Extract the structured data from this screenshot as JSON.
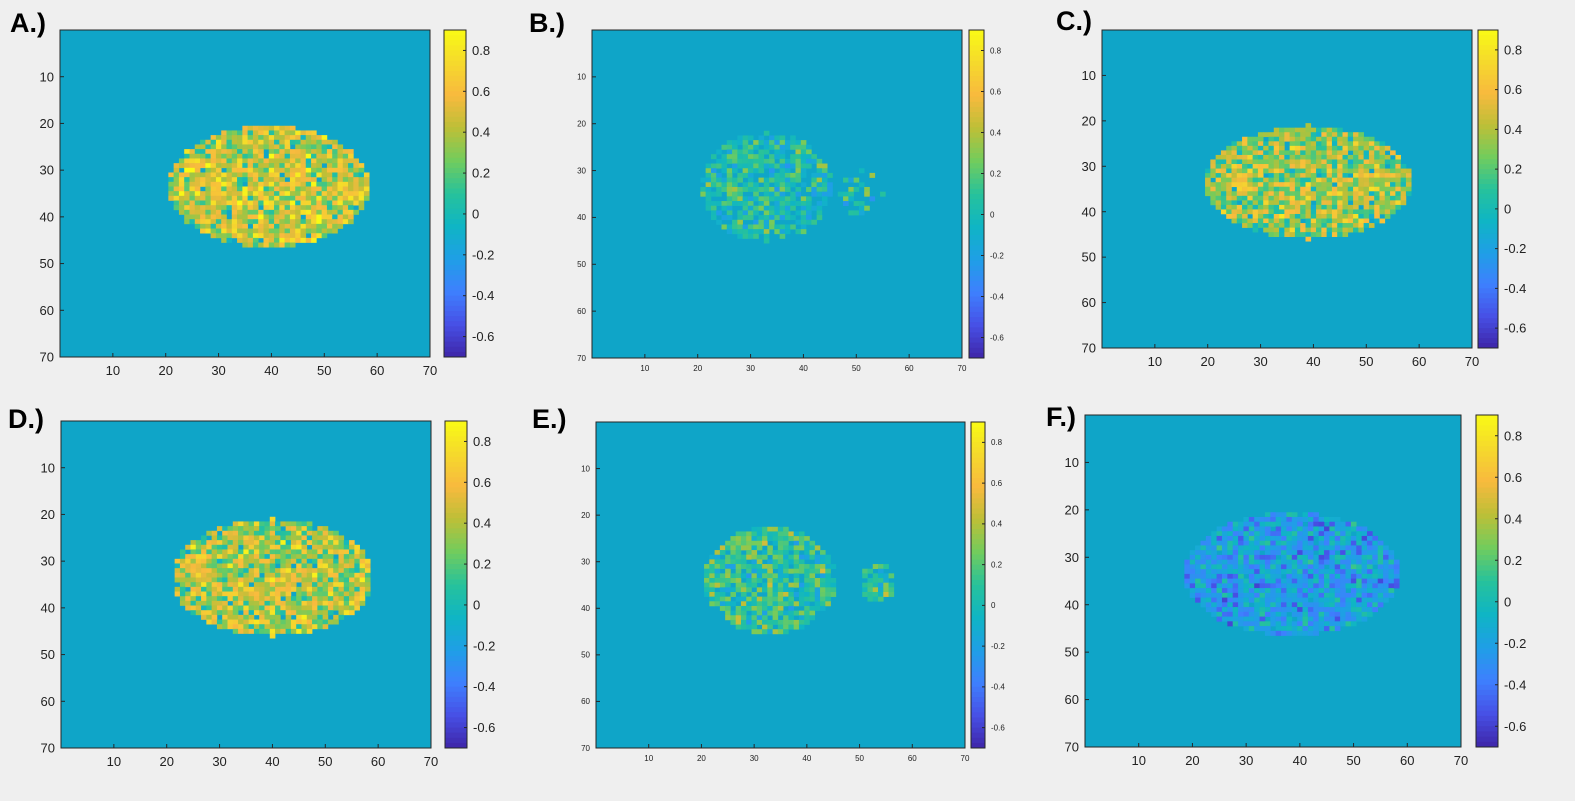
{
  "colors": {
    "background_value": "#0fa5c8",
    "colormap": [
      "#3e26a8",
      "#4750e6",
      "#3e80fe",
      "#1f9fe6",
      "#0fb5c4",
      "#27c29b",
      "#72cc5d",
      "#bdbf37",
      "#f8ba3e",
      "#f5d92c",
      "#f9fb15"
    ]
  },
  "chart_data": [
    {
      "type": "heatmap",
      "label": "A.)",
      "xticks": [
        10,
        20,
        30,
        40,
        50,
        60,
        70
      ],
      "yticks": [
        10,
        20,
        30,
        40,
        50,
        60,
        70
      ],
      "xlim": [
        0,
        70
      ],
      "ylim": [
        0,
        70
      ],
      "clim": [
        -0.7,
        0.9
      ],
      "colorbar_ticks": [
        0.8,
        0.6,
        0.4,
        0.2,
        0,
        -0.2,
        -0.4,
        -0.6
      ],
      "colorbar_tick_labels": [
        "0.8",
        "0.6",
        "0.4",
        "0.2",
        "0",
        "-0.2",
        "-0.4",
        "-0.6"
      ],
      "region": {
        "cx": 39.5,
        "cy": 33.5,
        "rx": 19,
        "ry": 13
      },
      "lobe": null,
      "value_mean": 0.45,
      "value_spread": 0.32,
      "seed": 11,
      "hotspots": [
        {
          "x": 27,
          "y": 33,
          "r": 4,
          "v": 0.75
        },
        {
          "x": 43,
          "y": 32,
          "r": 4,
          "v": 0.75
        },
        {
          "x": 55,
          "y": 35,
          "r": 4,
          "v": 0.7
        }
      ]
    },
    {
      "type": "heatmap",
      "label": "B.)",
      "xticks": [
        10,
        20,
        30,
        40,
        50,
        60,
        70
      ],
      "yticks": [
        10,
        20,
        30,
        40,
        50,
        60,
        70
      ],
      "xlim": [
        0,
        70
      ],
      "ylim": [
        0,
        70
      ],
      "clim": [
        -0.7,
        0.9
      ],
      "colorbar_ticks": [
        0.8,
        0.6,
        0.4,
        0.2,
        0,
        -0.2,
        -0.4,
        -0.6
      ],
      "colorbar_tick_labels": [
        "0.8",
        "0.6",
        "0.4",
        "0.2",
        "0",
        "-0.2",
        "-0.4",
        "-0.6"
      ],
      "region": {
        "cx": 33,
        "cy": 33.5,
        "rx": 12.5,
        "ry": 11.5
      },
      "lobe": {
        "cx": 51,
        "cy": 35,
        "rx": 4,
        "ry": 5,
        "density": 0.45
      },
      "value_mean": 0.05,
      "value_spread": 0.22,
      "density": 0.78,
      "seed": 23,
      "hotspots": [
        {
          "x": 27,
          "y": 34,
          "r": 3,
          "v": 0.55
        }
      ]
    },
    {
      "type": "heatmap",
      "label": "C.)",
      "xticks": [
        10,
        20,
        30,
        40,
        50,
        60,
        70
      ],
      "yticks": [
        10,
        20,
        30,
        40,
        50,
        60,
        70
      ],
      "xlim": [
        0,
        70
      ],
      "ylim": [
        0,
        70
      ],
      "clim": [
        -0.7,
        0.9
      ],
      "colorbar_ticks": [
        0.8,
        0.6,
        0.4,
        0.2,
        0,
        -0.2,
        -0.4,
        -0.6
      ],
      "colorbar_tick_labels": [
        "0.8",
        "0.6",
        "0.4",
        "0.2",
        "0",
        "-0.2",
        "-0.4",
        "-0.6"
      ],
      "region": {
        "cx": 39,
        "cy": 33.5,
        "rx": 19.5,
        "ry": 12.5
      },
      "lobe": null,
      "value_mean": 0.35,
      "value_spread": 0.3,
      "seed": 37,
      "hotspots": [
        {
          "x": 26,
          "y": 34,
          "r": 4,
          "v": 0.85
        },
        {
          "x": 51,
          "y": 32,
          "r": 3.5,
          "v": 0.9
        }
      ]
    },
    {
      "type": "heatmap",
      "label": "D.)",
      "xticks": [
        10,
        20,
        30,
        40,
        50,
        60,
        70
      ],
      "yticks": [
        10,
        20,
        30,
        40,
        50,
        60,
        70
      ],
      "xlim": [
        0,
        70
      ],
      "ylim": [
        0,
        70
      ],
      "clim": [
        -0.7,
        0.9
      ],
      "colorbar_ticks": [
        0.8,
        0.6,
        0.4,
        0.2,
        0,
        -0.2,
        -0.4,
        -0.6
      ],
      "colorbar_tick_labels": [
        "0.8",
        "0.6",
        "0.4",
        "0.2",
        "0",
        "-0.2",
        "-0.4",
        "-0.6"
      ],
      "region": {
        "cx": 40,
        "cy": 33.5,
        "rx": 19,
        "ry": 12.5
      },
      "lobe": null,
      "value_mean": 0.4,
      "value_spread": 0.3,
      "seed": 51,
      "hotspots": [
        {
          "x": 27,
          "y": 33,
          "r": 4,
          "v": 0.7
        },
        {
          "x": 44,
          "y": 34,
          "r": 4,
          "v": 0.75
        }
      ]
    },
    {
      "type": "heatmap",
      "label": "E.)",
      "xticks": [
        10,
        20,
        30,
        40,
        50,
        60,
        70
      ],
      "yticks": [
        10,
        20,
        30,
        40,
        50,
        60,
        70
      ],
      "xlim": [
        0,
        70
      ],
      "ylim": [
        0,
        70
      ],
      "clim": [
        -0.7,
        0.9
      ],
      "colorbar_ticks": [
        0.8,
        0.6,
        0.4,
        0.2,
        0,
        -0.2,
        -0.4,
        -0.6
      ],
      "colorbar_tick_labels": [
        "0.8",
        "0.6",
        "0.4",
        "0.2",
        "0",
        "-0.2",
        "-0.4",
        "-0.6"
      ],
      "region": {
        "cx": 33,
        "cy": 34,
        "rx": 12.5,
        "ry": 11.5
      },
      "lobe": {
        "cx": 53.5,
        "cy": 34.5,
        "rx": 3.2,
        "ry": 4.5,
        "density": 0.85
      },
      "value_mean": 0.12,
      "value_spread": 0.25,
      "density": 0.9,
      "seed": 67,
      "hotspots": [
        {
          "x": 27,
          "y": 25,
          "r": 3,
          "v": 0.5
        }
      ]
    },
    {
      "type": "heatmap",
      "label": "F.)",
      "xticks": [
        10,
        20,
        30,
        40,
        50,
        60,
        70
      ],
      "yticks": [
        10,
        20,
        30,
        40,
        50,
        60,
        70
      ],
      "xlim": [
        0,
        70
      ],
      "ylim": [
        0,
        70
      ],
      "clim": [
        -0.7,
        0.9
      ],
      "colorbar_ticks": [
        0.8,
        0.6,
        0.4,
        0.2,
        0,
        -0.2,
        -0.4,
        -0.6
      ],
      "colorbar_tick_labels": [
        "0.8",
        "0.6",
        "0.4",
        "0.2",
        "0",
        "-0.2",
        "-0.4",
        "-0.6"
      ],
      "region": {
        "cx": 38.5,
        "cy": 33.5,
        "rx": 20,
        "ry": 13
      },
      "lobe": null,
      "value_mean": -0.22,
      "value_spread": 0.25,
      "seed": 83,
      "hotspots": []
    }
  ]
}
